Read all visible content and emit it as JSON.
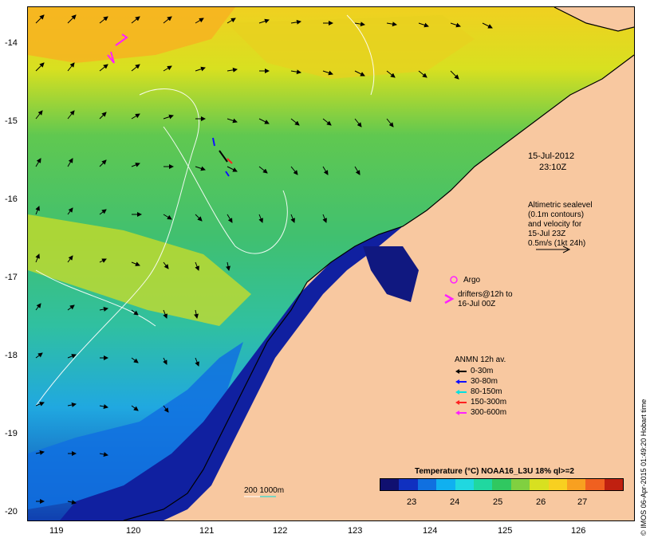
{
  "map": {
    "date": "15-Jul-2012",
    "time": "23:10Z",
    "altimetry_note": [
      "Altimetric sealevel",
      "(0.1m contours)",
      "and velocity for",
      "15-Jul 23Z",
      "0.5m/s (1kt 24h)"
    ],
    "argo_label": "Argo",
    "drifters_note": [
      "drifters@12h to",
      "16-Jul 00Z"
    ],
    "anmn_title": "ANMN 12h av.",
    "anmn_legend": [
      {
        "label": "0-30m",
        "color": "#000000"
      },
      {
        "label": "30-80m",
        "color": "#1010ff"
      },
      {
        "label": "80-150m",
        "color": "#00e0e0"
      },
      {
        "label": "150-300m",
        "color": "#ff2020"
      },
      {
        "label": "300-600m",
        "color": "#ff20ff"
      }
    ],
    "bathy_label": "200  1000m",
    "colorbar": {
      "title": "Temperature (°C) NOAA16_L3U 18% ql>=2",
      "ticks": [
        "23",
        "24",
        "25",
        "26",
        "27"
      ],
      "colors": [
        "#101070",
        "#1030c0",
        "#1070e0",
        "#10b0f0",
        "#20d8e0",
        "#20d8a0",
        "#30c860",
        "#80d040",
        "#d8e020",
        "#f8d020",
        "#f8a020",
        "#f06020",
        "#c02010"
      ]
    },
    "lon_ticks": [
      "119",
      "120",
      "121",
      "122",
      "123",
      "124",
      "125",
      "126"
    ],
    "lat_ticks": [
      "-14",
      "-15",
      "-16",
      "-17",
      "-18",
      "-19",
      "-20"
    ],
    "credit": "© IMOS 06-Apr-2015 01:49:20 Hobart time",
    "colors": {
      "land": "#f8c8a0",
      "frame": "#000000"
    }
  }
}
